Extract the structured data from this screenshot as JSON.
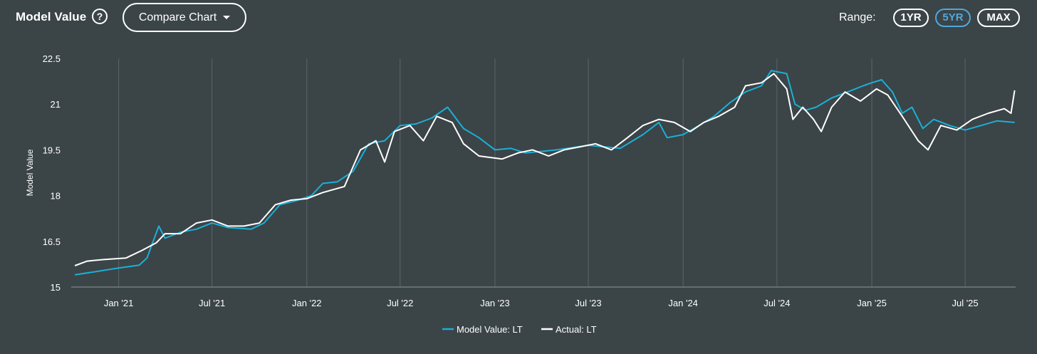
{
  "header": {
    "title": "Model Value",
    "help_glyph": "?",
    "compare_label": "Compare Chart",
    "range_label": "Range:",
    "ranges": [
      {
        "label": "1YR",
        "active": false
      },
      {
        "label": "5YR",
        "active": true
      },
      {
        "label": "MAX",
        "active": false
      }
    ]
  },
  "colors": {
    "background": "#3b4447",
    "model_series": "#1ab0d8",
    "actual_series": "#ffffff",
    "active_range": "#4fa8e0"
  },
  "chart_data": {
    "type": "line",
    "title": "",
    "xlabel": "",
    "ylabel": "Model Value",
    "ylim": [
      15,
      22.5
    ],
    "yticks": [
      "15",
      "16.5",
      "18",
      "19.5",
      "21",
      "22.5"
    ],
    "xlim": [
      "2020-10-01",
      "2025-10-07"
    ],
    "xticks": [
      {
        "label": "Jan '21",
        "date": "2021-01-01"
      },
      {
        "label": "Jul '21",
        "date": "2021-07-01"
      },
      {
        "label": "Jan '22",
        "date": "2022-01-01"
      },
      {
        "label": "Jul '22",
        "date": "2022-07-01"
      },
      {
        "label": "Jan '23",
        "date": "2023-01-01"
      },
      {
        "label": "Jul '23",
        "date": "2023-07-01"
      },
      {
        "label": "Jan '24",
        "date": "2024-01-01"
      },
      {
        "label": "Jul '24",
        "date": "2024-07-01"
      },
      {
        "label": "Jan '25",
        "date": "2025-01-01"
      },
      {
        "label": "Jul '25",
        "date": "2025-07-01"
      }
    ],
    "grid": "vertical",
    "legend": "bottom-center",
    "series": [
      {
        "name": "Model Value: LT",
        "color": "#1ab0d8",
        "points": [
          [
            "2020-10-08",
            15.4
          ],
          [
            "2020-11-15",
            15.5
          ],
          [
            "2020-12-30",
            15.62
          ],
          [
            "2021-02-10",
            15.72
          ],
          [
            "2021-02-25",
            15.95
          ],
          [
            "2021-03-10",
            16.55
          ],
          [
            "2021-03-20",
            17.0
          ],
          [
            "2021-04-01",
            16.6
          ],
          [
            "2021-05-01",
            16.8
          ],
          [
            "2021-06-01",
            16.9
          ],
          [
            "2021-07-01",
            17.1
          ],
          [
            "2021-08-01",
            16.95
          ],
          [
            "2021-09-15",
            16.9
          ],
          [
            "2021-10-10",
            17.1
          ],
          [
            "2021-11-10",
            17.7
          ],
          [
            "2021-12-15",
            17.85
          ],
          [
            "2022-01-10",
            18.0
          ],
          [
            "2022-02-01",
            18.4
          ],
          [
            "2022-03-01",
            18.45
          ],
          [
            "2022-04-01",
            18.8
          ],
          [
            "2022-05-01",
            19.7
          ],
          [
            "2022-06-01",
            19.8
          ],
          [
            "2022-07-01",
            20.3
          ],
          [
            "2022-08-01",
            20.35
          ],
          [
            "2022-09-01",
            20.55
          ],
          [
            "2022-10-01",
            20.9
          ],
          [
            "2022-11-01",
            20.2
          ],
          [
            "2022-12-01",
            19.9
          ],
          [
            "2023-01-01",
            19.5
          ],
          [
            "2023-02-01",
            19.55
          ],
          [
            "2023-03-01",
            19.4
          ],
          [
            "2023-05-01",
            19.5
          ],
          [
            "2023-07-01",
            19.65
          ],
          [
            "2023-08-01",
            19.6
          ],
          [
            "2023-09-01",
            19.55
          ],
          [
            "2023-10-15",
            20.0
          ],
          [
            "2023-11-15",
            20.4
          ],
          [
            "2023-12-01",
            19.9
          ],
          [
            "2024-01-01",
            20.0
          ],
          [
            "2024-02-01",
            20.3
          ],
          [
            "2024-03-01",
            20.6
          ],
          [
            "2024-04-01",
            21.05
          ],
          [
            "2024-05-01",
            21.4
          ],
          [
            "2024-06-01",
            21.6
          ],
          [
            "2024-06-20",
            22.1
          ],
          [
            "2024-07-20",
            22.0
          ],
          [
            "2024-08-05",
            21.0
          ],
          [
            "2024-08-25",
            20.8
          ],
          [
            "2024-09-15",
            20.9
          ],
          [
            "2024-10-15",
            21.2
          ],
          [
            "2024-11-15",
            21.4
          ],
          [
            "2024-12-15",
            21.6
          ],
          [
            "2025-01-01",
            21.7
          ],
          [
            "2025-01-20",
            21.8
          ],
          [
            "2025-02-10",
            21.4
          ],
          [
            "2025-03-01",
            20.7
          ],
          [
            "2025-03-20",
            20.9
          ],
          [
            "2025-04-10",
            20.2
          ],
          [
            "2025-05-01",
            20.5
          ],
          [
            "2025-06-01",
            20.3
          ],
          [
            "2025-07-01",
            20.15
          ],
          [
            "2025-08-01",
            20.3
          ],
          [
            "2025-09-01",
            20.45
          ],
          [
            "2025-10-05",
            20.4
          ]
        ]
      },
      {
        "name": "Actual: LT",
        "color": "#ffffff",
        "points": [
          [
            "2020-10-08",
            15.7
          ],
          [
            "2020-11-01",
            15.85
          ],
          [
            "2020-12-01",
            15.9
          ],
          [
            "2021-01-15",
            15.95
          ],
          [
            "2021-02-15",
            16.2
          ],
          [
            "2021-03-15",
            16.45
          ],
          [
            "2021-04-01",
            16.75
          ],
          [
            "2021-05-01",
            16.75
          ],
          [
            "2021-06-01",
            17.1
          ],
          [
            "2021-07-01",
            17.2
          ],
          [
            "2021-08-01",
            17.0
          ],
          [
            "2021-09-01",
            17.0
          ],
          [
            "2021-10-01",
            17.1
          ],
          [
            "2021-11-01",
            17.7
          ],
          [
            "2021-12-01",
            17.85
          ],
          [
            "2022-01-01",
            17.9
          ],
          [
            "2022-02-01",
            18.1
          ],
          [
            "2022-03-15",
            18.3
          ],
          [
            "2022-04-15",
            19.5
          ],
          [
            "2022-05-15",
            19.8
          ],
          [
            "2022-06-01",
            19.1
          ],
          [
            "2022-06-20",
            20.1
          ],
          [
            "2022-07-20",
            20.3
          ],
          [
            "2022-08-15",
            19.8
          ],
          [
            "2022-09-10",
            20.6
          ],
          [
            "2022-10-10",
            20.4
          ],
          [
            "2022-11-01",
            19.7
          ],
          [
            "2022-12-01",
            19.3
          ],
          [
            "2023-01-15",
            19.2
          ],
          [
            "2023-02-15",
            19.4
          ],
          [
            "2023-03-15",
            19.5
          ],
          [
            "2023-04-15",
            19.3
          ],
          [
            "2023-05-15",
            19.5
          ],
          [
            "2023-06-15",
            19.6
          ],
          [
            "2023-07-15",
            19.7
          ],
          [
            "2023-08-15",
            19.5
          ],
          [
            "2023-09-15",
            19.9
          ],
          [
            "2023-10-15",
            20.3
          ],
          [
            "2023-11-15",
            20.5
          ],
          [
            "2023-12-15",
            20.4
          ],
          [
            "2024-01-15",
            20.1
          ],
          [
            "2024-02-10",
            20.4
          ],
          [
            "2024-03-10",
            20.6
          ],
          [
            "2024-04-10",
            20.9
          ],
          [
            "2024-05-01",
            21.6
          ],
          [
            "2024-06-01",
            21.7
          ],
          [
            "2024-06-25",
            22.0
          ],
          [
            "2024-07-20",
            21.5
          ],
          [
            "2024-08-01",
            20.5
          ],
          [
            "2024-08-20",
            20.9
          ],
          [
            "2024-09-10",
            20.5
          ],
          [
            "2024-09-25",
            20.1
          ],
          [
            "2024-10-15",
            20.9
          ],
          [
            "2024-11-10",
            21.4
          ],
          [
            "2024-12-10",
            21.1
          ],
          [
            "2025-01-10",
            21.5
          ],
          [
            "2025-02-01",
            21.3
          ],
          [
            "2025-03-01",
            20.6
          ],
          [
            "2025-04-01",
            19.8
          ],
          [
            "2025-04-20",
            19.5
          ],
          [
            "2025-05-15",
            20.3
          ],
          [
            "2025-06-15",
            20.15
          ],
          [
            "2025-07-15",
            20.5
          ],
          [
            "2025-08-15",
            20.7
          ],
          [
            "2025-09-15",
            20.85
          ],
          [
            "2025-09-28",
            20.7
          ],
          [
            "2025-10-05",
            21.45
          ]
        ]
      }
    ]
  }
}
